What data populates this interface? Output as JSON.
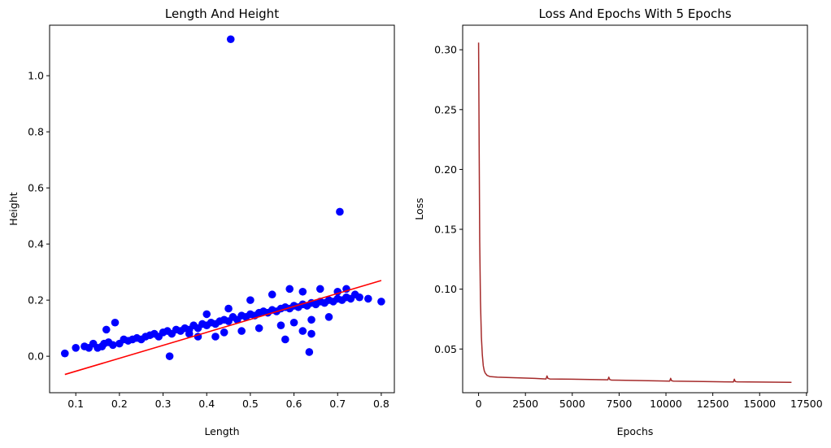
{
  "chart_data": [
    {
      "type": "scatter",
      "title": "Length And Height",
      "xlabel": "Length",
      "ylabel": "Height",
      "xlim": [
        0.04,
        0.83
      ],
      "ylim": [
        -0.13,
        1.18
      ],
      "xticks": [
        0.1,
        0.2,
        0.3,
        0.4,
        0.5,
        0.6,
        0.7,
        0.8
      ],
      "yticks": [
        0.0,
        0.2,
        0.4,
        0.6,
        0.8,
        1.0
      ],
      "xtick_labels": [
        "0.1",
        "0.2",
        "0.3",
        "0.4",
        "0.5",
        "0.6",
        "0.7",
        "0.8"
      ],
      "ytick_labels": [
        "0.0",
        "0.2",
        "0.4",
        "0.6",
        "0.8",
        "1.0"
      ],
      "grid": false,
      "colors": {
        "points": "#0000ff",
        "fit_line": "#ff0000"
      },
      "series": [
        {
          "kind": "scatter",
          "points": [
            [
              0.075,
              0.01
            ],
            [
              0.1,
              0.03
            ],
            [
              0.12,
              0.035
            ],
            [
              0.13,
              0.03
            ],
            [
              0.14,
              0.045
            ],
            [
              0.15,
              0.03
            ],
            [
              0.16,
              0.035
            ],
            [
              0.165,
              0.045
            ],
            [
              0.17,
              0.095
            ],
            [
              0.175,
              0.05
            ],
            [
              0.185,
              0.04
            ],
            [
              0.19,
              0.12
            ],
            [
              0.2,
              0.045
            ],
            [
              0.21,
              0.06
            ],
            [
              0.22,
              0.055
            ],
            [
              0.23,
              0.06
            ],
            [
              0.24,
              0.065
            ],
            [
              0.25,
              0.06
            ],
            [
              0.26,
              0.07
            ],
            [
              0.27,
              0.075
            ],
            [
              0.28,
              0.08
            ],
            [
              0.29,
              0.07
            ],
            [
              0.3,
              0.085
            ],
            [
              0.31,
              0.09
            ],
            [
              0.32,
              0.08
            ],
            [
              0.315,
              0.0
            ],
            [
              0.33,
              0.095
            ],
            [
              0.34,
              0.09
            ],
            [
              0.35,
              0.1
            ],
            [
              0.36,
              0.095
            ],
            [
              0.37,
              0.11
            ],
            [
              0.38,
              0.1
            ],
            [
              0.39,
              0.115
            ],
            [
              0.4,
              0.11
            ],
            [
              0.41,
              0.12
            ],
            [
              0.42,
              0.115
            ],
            [
              0.43,
              0.125
            ],
            [
              0.44,
              0.13
            ],
            [
              0.45,
              0.125
            ],
            [
              0.46,
              0.14
            ],
            [
              0.47,
              0.13
            ],
            [
              0.48,
              0.145
            ],
            [
              0.49,
              0.14
            ],
            [
              0.5,
              0.15
            ],
            [
              0.51,
              0.145
            ],
            [
              0.52,
              0.155
            ],
            [
              0.53,
              0.16
            ],
            [
              0.54,
              0.155
            ],
            [
              0.55,
              0.165
            ],
            [
              0.56,
              0.16
            ],
            [
              0.57,
              0.17
            ],
            [
              0.58,
              0.175
            ],
            [
              0.59,
              0.17
            ],
            [
              0.6,
              0.18
            ],
            [
              0.61,
              0.175
            ],
            [
              0.62,
              0.185
            ],
            [
              0.63,
              0.18
            ],
            [
              0.64,
              0.19
            ],
            [
              0.65,
              0.185
            ],
            [
              0.66,
              0.195
            ],
            [
              0.67,
              0.19
            ],
            [
              0.68,
              0.2
            ],
            [
              0.69,
              0.195
            ],
            [
              0.7,
              0.205
            ],
            [
              0.71,
              0.2
            ],
            [
              0.72,
              0.21
            ],
            [
              0.73,
              0.205
            ],
            [
              0.75,
              0.21
            ],
            [
              0.77,
              0.205
            ],
            [
              0.8,
              0.195
            ],
            [
              0.36,
              0.08
            ],
            [
              0.4,
              0.15
            ],
            [
              0.42,
              0.07
            ],
            [
              0.45,
              0.17
            ],
            [
              0.48,
              0.09
            ],
            [
              0.5,
              0.2
            ],
            [
              0.52,
              0.1
            ],
            [
              0.55,
              0.22
            ],
            [
              0.57,
              0.11
            ],
            [
              0.59,
              0.24
            ],
            [
              0.6,
              0.12
            ],
            [
              0.62,
              0.23
            ],
            [
              0.64,
              0.13
            ],
            [
              0.66,
              0.24
            ],
            [
              0.68,
              0.14
            ],
            [
              0.7,
              0.23
            ],
            [
              0.72,
              0.24
            ],
            [
              0.74,
              0.22
            ],
            [
              0.58,
              0.06
            ],
            [
              0.62,
              0.09
            ],
            [
              0.64,
              0.08
            ],
            [
              0.635,
              0.015
            ],
            [
              0.44,
              0.085
            ],
            [
              0.38,
              0.07
            ],
            [
              0.455,
              1.13
            ],
            [
              0.705,
              0.515
            ]
          ]
        },
        {
          "kind": "line",
          "x": [
            0.075,
            0.8
          ],
          "y": [
            -0.065,
            0.27
          ]
        }
      ]
    },
    {
      "type": "line",
      "title": "Loss And Epochs With 5 Epochs",
      "xlabel": "Epochs",
      "ylabel": "Loss",
      "xlim": [
        -850,
        17550
      ],
      "ylim": [
        0.0135,
        0.3205
      ],
      "xticks": [
        0,
        2500,
        5000,
        7500,
        10000,
        12500,
        15000,
        17500
      ],
      "yticks": [
        0.05,
        0.1,
        0.15,
        0.2,
        0.25,
        0.3
      ],
      "xtick_labels": [
        "0",
        "2500",
        "5000",
        "7500",
        "10000",
        "12500",
        "15000",
        "17500"
      ],
      "ytick_labels": [
        "0.05",
        "0.10",
        "0.15",
        "0.20",
        "0.25",
        "0.30"
      ],
      "grid": false,
      "colors": {
        "line": "#a52a2a"
      },
      "series": [
        {
          "x": [
            0,
            30,
            60,
            100,
            150,
            200,
            250,
            300,
            350,
            450,
            600,
            1000,
            2000,
            3000,
            3600,
            3650,
            3700,
            3800,
            5000,
            6900,
            6950,
            7000,
            7100,
            8500,
            10200,
            10250,
            10300,
            10400,
            12000,
            13600,
            13650,
            13700,
            13800,
            15000,
            16700
          ],
          "y": [
            0.306,
            0.22,
            0.14,
            0.09,
            0.06,
            0.045,
            0.036,
            0.032,
            0.03,
            0.028,
            0.027,
            0.0265,
            0.026,
            0.0255,
            0.025,
            0.0275,
            0.0255,
            0.025,
            0.0248,
            0.0243,
            0.0265,
            0.0245,
            0.024,
            0.0237,
            0.0232,
            0.0255,
            0.0235,
            0.0232,
            0.0228,
            0.0225,
            0.0248,
            0.0228,
            0.0226,
            0.0224,
            0.0222
          ]
        }
      ]
    }
  ]
}
